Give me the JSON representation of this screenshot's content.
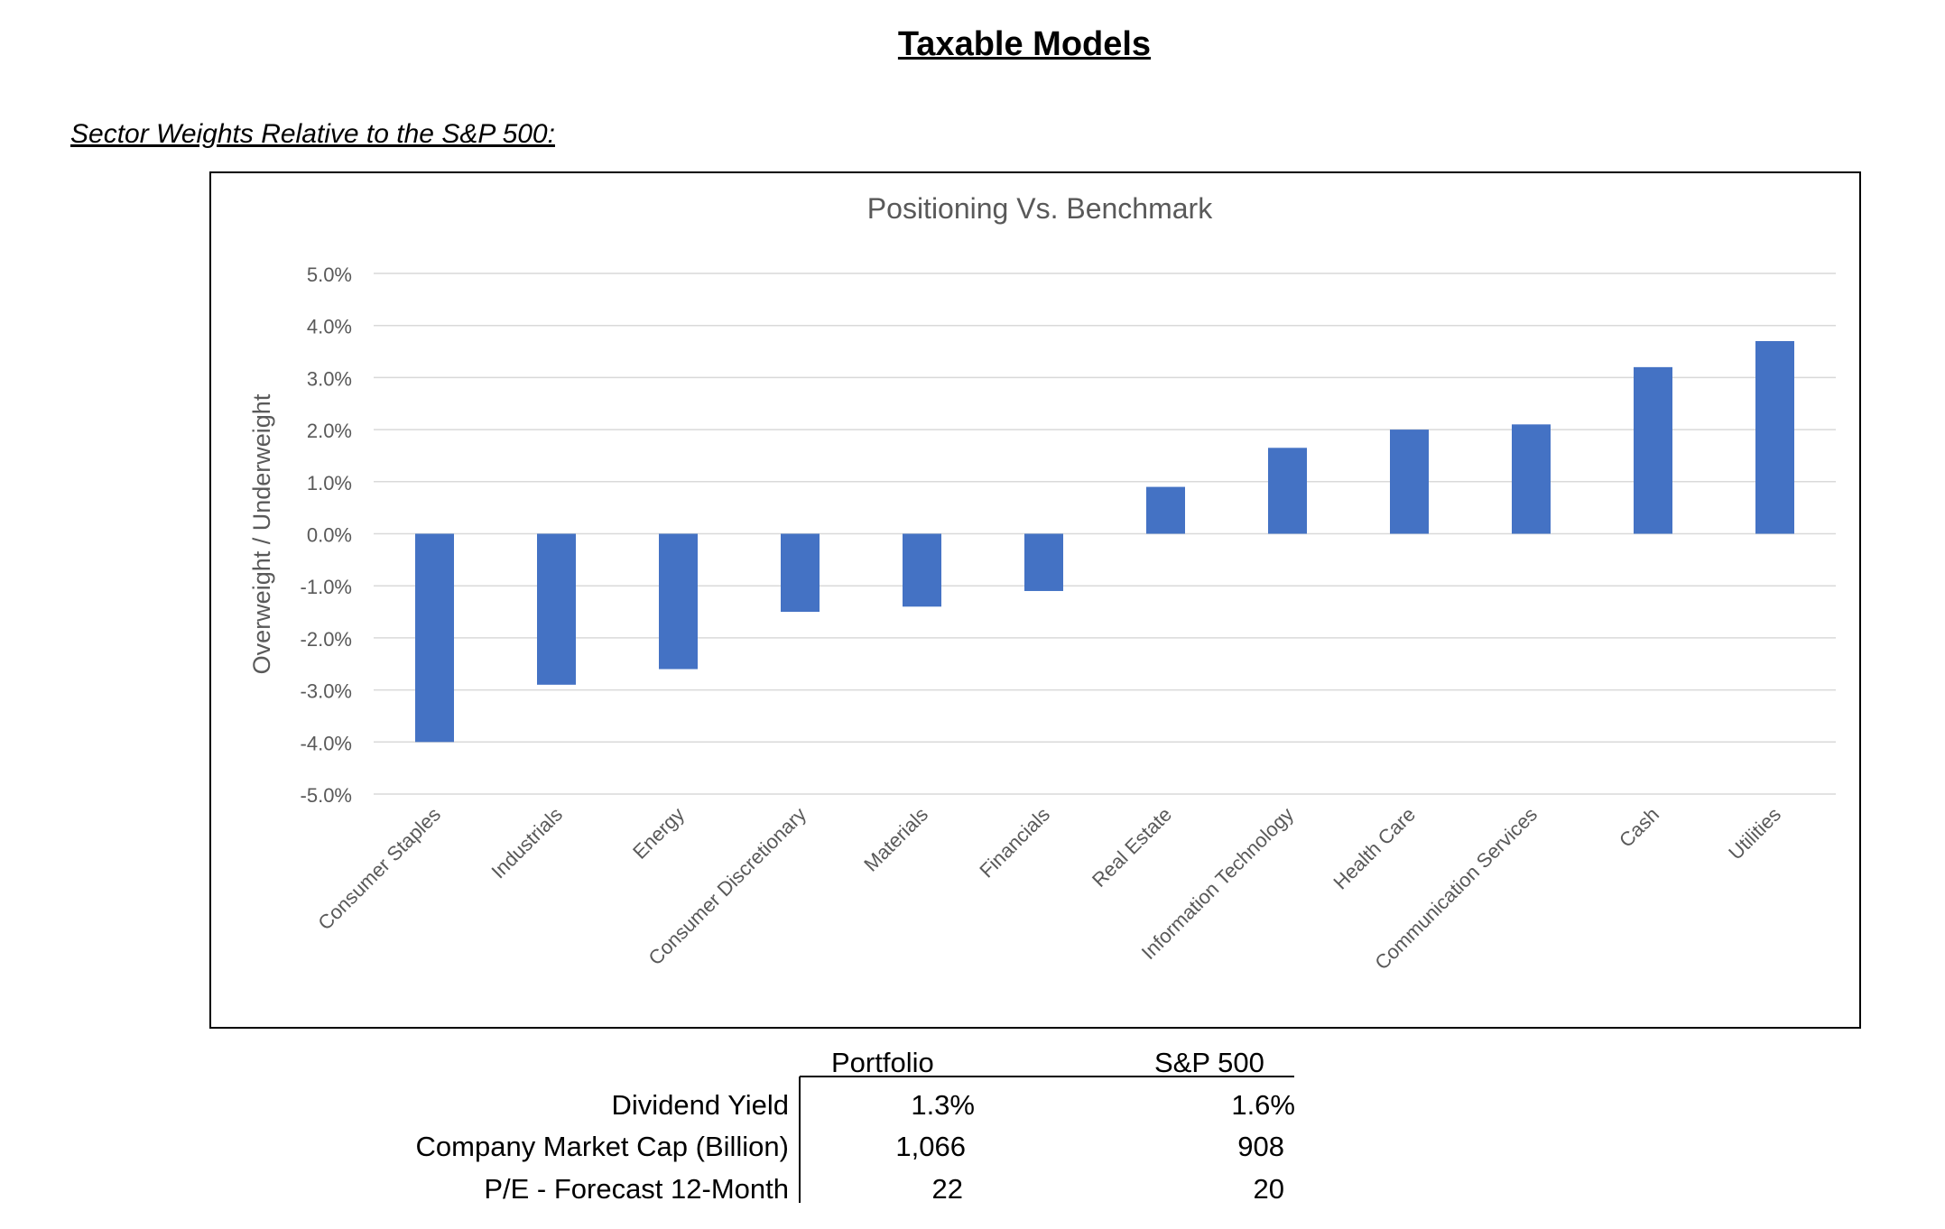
{
  "page_title": "Taxable Models",
  "section_heading": "Sector Weights Relative to the S&P 500:",
  "chart_data": {
    "type": "bar",
    "title": "Positioning Vs. Benchmark",
    "xlabel": "",
    "ylabel": "Overweight / Underweight",
    "ylim": [
      -5.0,
      5.0
    ],
    "yticks": [
      5.0,
      4.0,
      3.0,
      2.0,
      1.0,
      0.0,
      -1.0,
      -2.0,
      -3.0,
      -4.0,
      -5.0
    ],
    "ytick_labels": [
      "5.0%",
      "4.0%",
      "3.0%",
      "2.0%",
      "1.0%",
      "0.0%",
      "-1.0%",
      "-2.0%",
      "-3.0%",
      "-4.0%",
      "-5.0%"
    ],
    "grid": true,
    "bar_color": "#4472C4",
    "categories": [
      "Consumer Staples",
      "Industrials",
      "Energy",
      "Consumer Discretionary",
      "Materials",
      "Financials",
      "Real Estate",
      "Information Technology",
      "Health Care",
      "Communication Services",
      "Cash",
      "Utilities"
    ],
    "values": [
      -4.0,
      -2.9,
      -2.6,
      -1.5,
      -1.4,
      -1.1,
      0.9,
      1.65,
      2.0,
      2.1,
      3.2,
      3.7
    ]
  },
  "stats": {
    "columns": [
      "Portfolio",
      "S&P 500"
    ],
    "rows": [
      {
        "label": "Dividend Yield",
        "portfolio": "1.3%",
        "sp500": "1.6%"
      },
      {
        "label": "Company Market Cap (Billion)",
        "portfolio": "1,066",
        "sp500": "908"
      },
      {
        "label": "P/E - Forecast 12-Month",
        "portfolio": "22",
        "sp500": "20"
      }
    ]
  }
}
